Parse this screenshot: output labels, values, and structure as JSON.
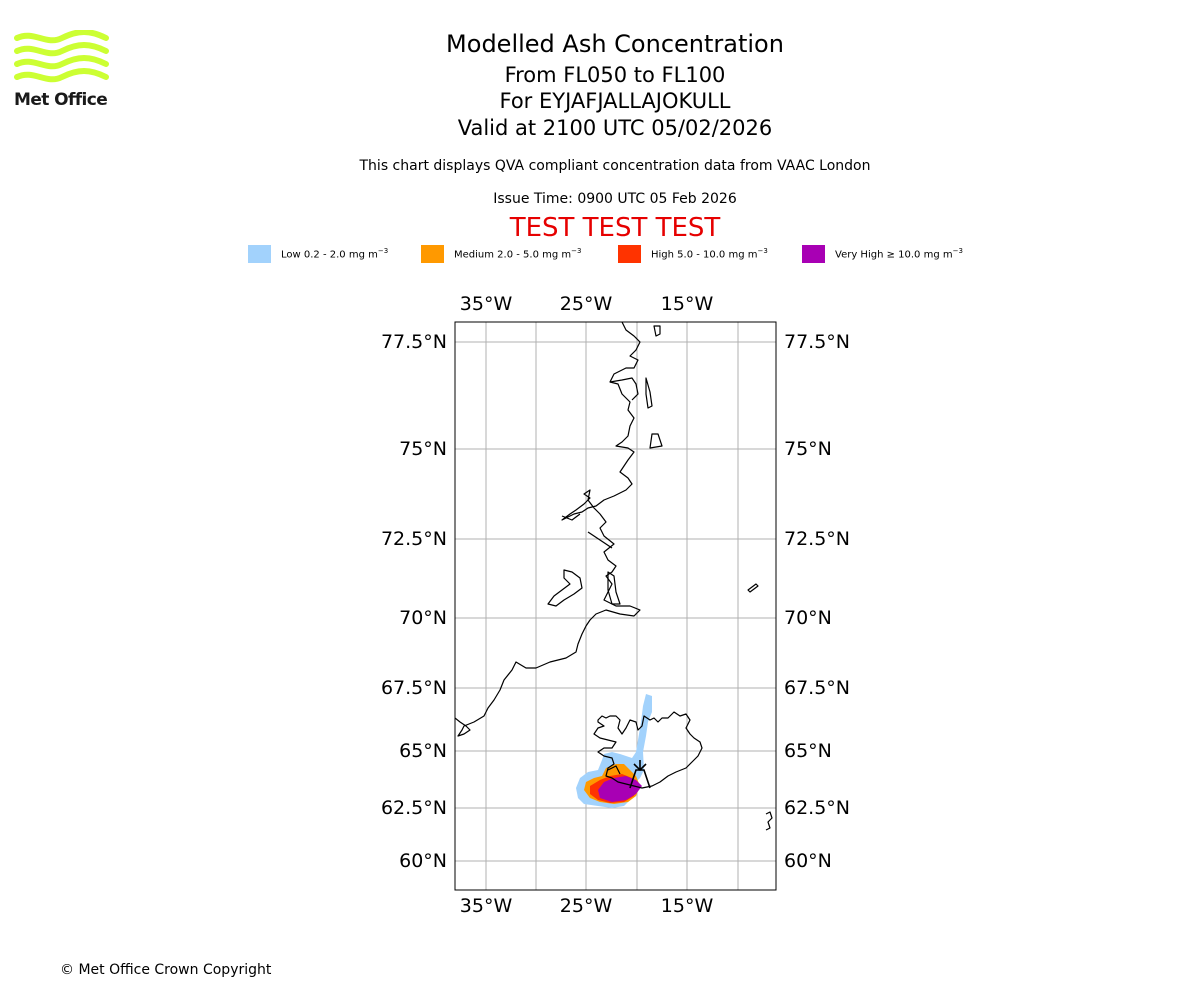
{
  "logo": {
    "text": "Met Office",
    "color": "#ccff33"
  },
  "title": {
    "line1": "Modelled Ash Concentration",
    "line2": "From FL050 to FL100",
    "line3": "For EYJAFJALLAJOKULL",
    "line4": "Valid at 2100 UTC 05/02/2026"
  },
  "subtitle": "This chart displays QVA compliant concentration data from VAAC London",
  "issue_time": "Issue Time: 0900 UTC 05 Feb 2026",
  "test_banner": "TEST TEST TEST",
  "legend": [
    {
      "label": "Low 0.2 - 2.0 mg m",
      "color": "#a2d2fc"
    },
    {
      "label": "Medium 2.0 - 5.0 mg m",
      "color": "#ff9900"
    },
    {
      "label": "High 5.0 - 10.0 mg m",
      "color": "#ff3300"
    },
    {
      "label": "Very High ≥ 10.0 mg m",
      "color": "#a800b4"
    }
  ],
  "legend_unit_exponent": "−3",
  "map": {
    "lon_labels_top": [
      "35°W",
      "25°W",
      "15°W"
    ],
    "lon_labels_bottom": [
      "35°W",
      "25°W",
      "15°W"
    ],
    "lat_labels_left": [
      "77.5°N",
      "75°N",
      "72.5°N",
      "70°N",
      "67.5°N",
      "65°N",
      "62.5°N",
      "60°N"
    ],
    "lat_labels_right": [
      "77.5°N",
      "75°N",
      "72.5°N",
      "70°N",
      "67.5°N",
      "65°N",
      "62.5°N",
      "60°N"
    ],
    "volcano_icon": "volcano-marker-icon"
  },
  "copyright": "© Met Office Crown Copyright"
}
